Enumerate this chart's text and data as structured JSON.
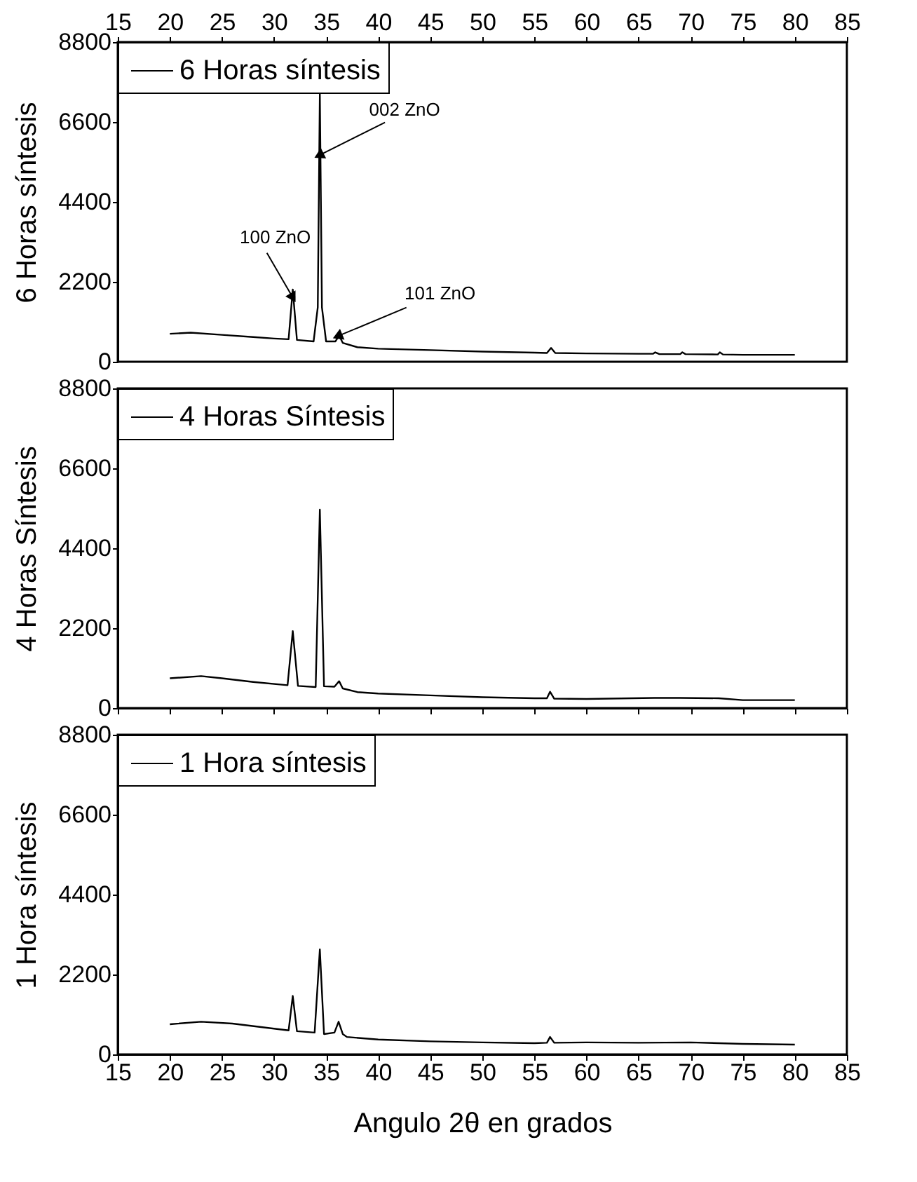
{
  "chart_data": [
    {
      "type": "line",
      "ylabel": "6 Horas síntesis",
      "xlim": [
        15,
        85
      ],
      "xticks": [
        15,
        20,
        25,
        30,
        35,
        40,
        45,
        50,
        55,
        60,
        65,
        70,
        75,
        80,
        85
      ],
      "ylim": [
        0,
        8800
      ],
      "yticks": [
        0,
        2200,
        4400,
        6600,
        8800
      ],
      "legend": "top left",
      "x": [
        20,
        22,
        25,
        28,
        30,
        31.4,
        31.8,
        32.2,
        33.8,
        34.2,
        34.4,
        34.6,
        35,
        35.9,
        36.25,
        36.6,
        38,
        40,
        45,
        50,
        55,
        56.2,
        56.6,
        57,
        60,
        65,
        66.4,
        66.6,
        67,
        69,
        69.2,
        69.5,
        72.6,
        72.8,
        73.1,
        75,
        80
      ],
      "series": [
        {
          "name": "6 Horas síntesis",
          "color": "#000000",
          "values": [
            770,
            800,
            740,
            680,
            640,
            620,
            1990,
            600,
            560,
            1500,
            7380,
            1500,
            560,
            560,
            720,
            520,
            400,
            360,
            320,
            280,
            250,
            240,
            380,
            240,
            230,
            220,
            220,
            260,
            210,
            210,
            260,
            210,
            200,
            260,
            200,
            190,
            190
          ]
        }
      ],
      "annotations": [
        {
          "text": "100 ZnO",
          "x": 31.74,
          "y": 1800
        },
        {
          "text": "002 ZnO",
          "x": 34.46,
          "y": 5700
        },
        {
          "text": "101 ZnO",
          "x": 36.25,
          "y": 720
        }
      ]
    },
    {
      "type": "line",
      "ylabel": "4 Horas Síntesis",
      "xlim": [
        15,
        85
      ],
      "xticks": [
        15,
        20,
        25,
        30,
        35,
        40,
        45,
        50,
        55,
        60,
        65,
        70,
        75,
        80,
        85
      ],
      "ylim": [
        0,
        8800
      ],
      "yticks": [
        0,
        2200,
        4400,
        6600,
        8800
      ],
      "legend": "top left",
      "tick_labels": "y",
      "x": [
        20,
        23,
        25,
        28,
        31.3,
        31.8,
        32.3,
        34,
        34.4,
        34.8,
        35.8,
        36.25,
        36.6,
        38,
        40,
        45,
        50,
        55,
        56.2,
        56.5,
        56.9,
        60,
        66.5,
        69,
        72.7,
        75,
        80
      ],
      "series": [
        {
          "name": "4 Horas Síntesis",
          "color": "#000000",
          "values": [
            820,
            880,
            820,
            720,
            630,
            2120,
            610,
            580,
            5460,
            600,
            590,
            740,
            540,
            440,
            400,
            350,
            300,
            270,
            270,
            450,
            260,
            250,
            280,
            280,
            270,
            220,
            220
          ]
        }
      ]
    },
    {
      "type": "line",
      "ylabel": "1 Hora síntesis",
      "xlabel": "Angulo 2θ en grados",
      "xlim": [
        15,
        85
      ],
      "xticks": [
        15,
        20,
        25,
        30,
        35,
        40,
        45,
        50,
        55,
        60,
        65,
        70,
        75,
        80,
        85
      ],
      "ylim": [
        0,
        8800
      ],
      "yticks": [
        0,
        2200,
        4400,
        6600,
        8800
      ],
      "legend": "top left",
      "x": [
        20,
        23,
        26,
        30,
        31.4,
        31.8,
        32.2,
        33.9,
        34.4,
        34.8,
        35.8,
        36.2,
        36.6,
        37,
        40,
        45,
        50,
        55,
        56.2,
        56.5,
        56.9,
        60,
        65,
        70,
        75,
        80
      ],
      "series": [
        {
          "name": "1 Hora síntesis",
          "color": "#000000",
          "values": [
            830,
            900,
            850,
            710,
            660,
            1610,
            640,
            600,
            2890,
            560,
            600,
            900,
            560,
            480,
            410,
            360,
            330,
            310,
            320,
            480,
            320,
            330,
            320,
            330,
            290,
            270
          ]
        }
      ]
    }
  ]
}
